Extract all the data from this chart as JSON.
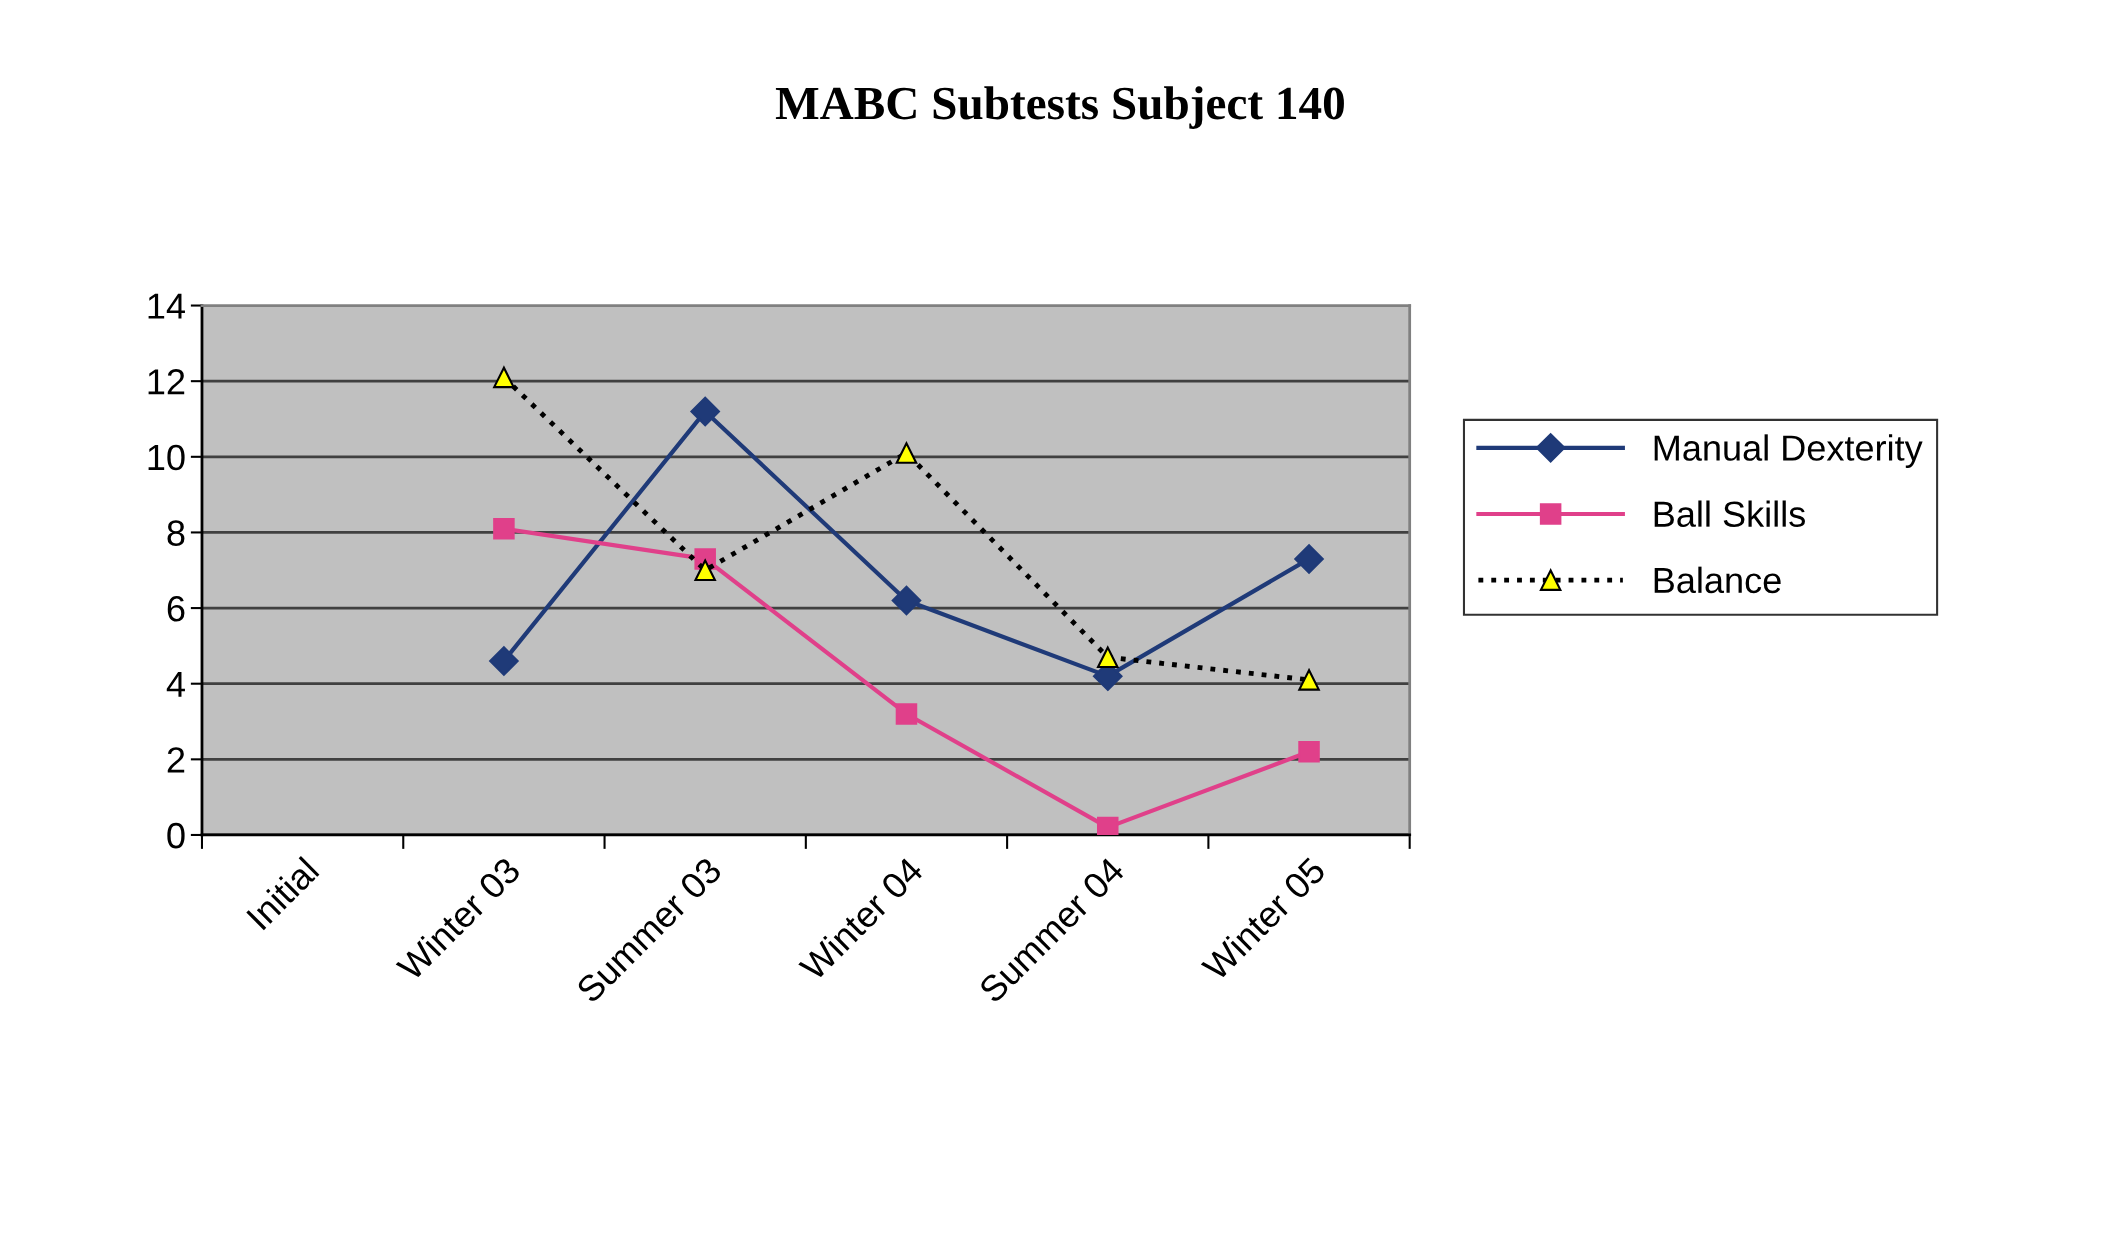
{
  "chart_data": {
    "type": "line",
    "title": "MABC Subtests Subject 140",
    "categories": [
      "Initial",
      "Winter 03",
      "Summer 03",
      "Winter 04",
      "Summer 04",
      "Winter 05"
    ],
    "series": [
      {
        "name": "Manual Dexterity",
        "color": "#1f3a78",
        "marker": "diamond",
        "line_style": "solid",
        "values": [
          null,
          4.6,
          11.2,
          6.2,
          4.2,
          7.3
        ]
      },
      {
        "name": "Ball Skills",
        "color": "#e0408a",
        "marker": "square",
        "line_style": "solid",
        "values": [
          null,
          8.1,
          7.3,
          3.2,
          0.2,
          2.2
        ]
      },
      {
        "name": "Balance",
        "color": "#000000",
        "marker": "triangle",
        "line_style": "dotted",
        "values": [
          null,
          12.1,
          7.0,
          10.1,
          4.7,
          4.1
        ]
      }
    ],
    "ylim": [
      0,
      14
    ],
    "yticks": [
      0,
      2,
      4,
      6,
      8,
      10,
      12,
      14
    ],
    "grid": "y",
    "legend": "right"
  }
}
